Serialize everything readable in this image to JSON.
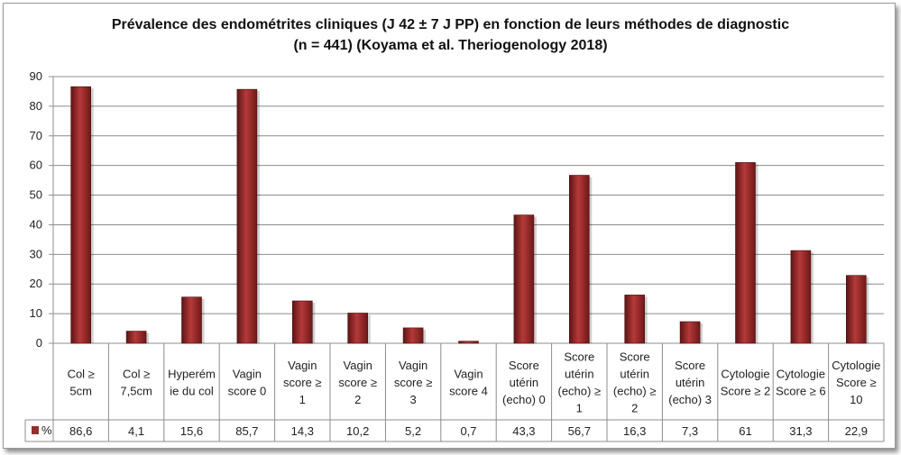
{
  "title_line1": "Prévalence des endométrites cliniques (J 42 ± 7 J PP) en fonction de leurs méthodes de diagnostic",
  "title_line2": "(n = 441) (Koyama et al. Theriogenology 2018)",
  "chart_data": {
    "type": "bar",
    "title": "Prévalence des endométrites cliniques (J 42 ± 7 J PP) en fonction de leurs méthodes de diagnostic (n = 441) (Koyama et al. Theriogenology 2018)",
    "categories": [
      [
        "Col ≥",
        "5cm"
      ],
      [
        "Col ≥",
        "7,5cm"
      ],
      [
        "Hyperém",
        "ie du col"
      ],
      [
        "Vagin",
        "score 0"
      ],
      [
        "Vagin",
        "score  ≥",
        "1"
      ],
      [
        "Vagin",
        "score  ≥",
        "2"
      ],
      [
        "Vagin",
        "score  ≥",
        "3"
      ],
      [
        "Vagin",
        "score 4"
      ],
      [
        "Score",
        "utérin",
        "(echo) 0"
      ],
      [
        "Score",
        "utérin",
        "(echo)  ≥",
        "1"
      ],
      [
        "Score",
        "utérin",
        "(echo)  ≥",
        "2"
      ],
      [
        "Score",
        "utérin",
        "(echo) 3"
      ],
      [
        "Cytologie",
        "Score ≥ 2"
      ],
      [
        "Cytologie",
        "Score ≥ 6"
      ],
      [
        "Cytologie",
        "Score ≥",
        "10"
      ]
    ],
    "series": [
      {
        "name": "%",
        "values": [
          86.6,
          4.1,
          15.6,
          85.7,
          14.3,
          10.2,
          5.2,
          0.7,
          43.3,
          56.7,
          16.3,
          7.3,
          61,
          31.3,
          22.9
        ],
        "labels": [
          "86,6",
          "4,1",
          "15,6",
          "85,7",
          "14,3",
          "10,2",
          "5,2",
          "0,7",
          "43,3",
          "56,7",
          "16,3",
          "7,3",
          "61",
          "31,3",
          "22,9"
        ],
        "color": "#9b2a2a"
      }
    ],
    "ylim": [
      0,
      90
    ],
    "yticks": [
      0,
      10,
      20,
      30,
      40,
      50,
      60,
      70,
      80,
      90
    ],
    "grid": true,
    "legend": "data-table"
  }
}
